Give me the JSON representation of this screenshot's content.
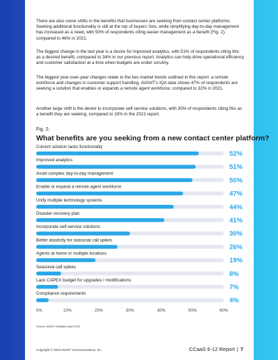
{
  "paragraphs": [
    "There are also some shifts in the benefits that businesses are seeking from contact center platforms. Seeking additional functionality is still at the top of buyers’ lists, while simplifying day-to-day management has increased as a need, with 50% of respondents citing easier management as a benefit (Fig. 2), compared to 46% in 2021.",
    "The biggest change in the last year is a desire for improved analytics, with 51% of respondents citing this as a desired benefit, compared to 34% in our previous report. Analytics can help drive operational efficiency and customer satisfaction at a time when budgets are under scrutiny.",
    "The biggest year-over-year changes relate to the two market trends outlined in this report: a remote workforce and changes in customer support handling. AVANT’s IQA data shows 47% of respondents are seeking a solution that enables or expands a remote agent workforce, compared to 32% in 2021.",
    "Another large shift is the desire to incorporate self-service solutions, with 30% of respondents citing this as a benefit they are seeking, compared to 19% in the 2021 report."
  ],
  "figure": {
    "label": "Fig. 2:",
    "source": "Source: AVANT Analytics April 2023"
  },
  "chart_data": {
    "type": "bar",
    "orientation": "horizontal",
    "title": "What benefits are you seeking from a new contact center platform?",
    "categories": [
      "Current solution lacks functionality",
      "Improved analytics",
      "Avoid complex day-to-day management",
      "Enable or expand a remote agent workforce",
      "Unify multiple technology systems",
      "Disaster recovery plan",
      "Incorporate self-service solutions",
      "Better elasticity for seasonal call spikes",
      "Agents at home or multiple locations",
      "Seasonal call spikes",
      "Lack CAPEX budget for upgrades / modifications",
      "Compliance requirements"
    ],
    "values": [
      52,
      51,
      50,
      47,
      44,
      41,
      30,
      26,
      19,
      8,
      7,
      4
    ],
    "value_labels": [
      "52%",
      "51%",
      "50%",
      "47%",
      "44%",
      "41%",
      "30%",
      "26%",
      "19%",
      "8%",
      "7%",
      "4%"
    ],
    "xticks": [
      "0%",
      "10%",
      "20%",
      "30%",
      "40%",
      "50%",
      "60%"
    ],
    "xlim": [
      0,
      60
    ],
    "xlabel": "",
    "ylabel": "",
    "bar_color": "#2aa7e8",
    "track_color": "#e4e8ee",
    "label_color": "#2aa7e8",
    "grid": false
  },
  "footer": {
    "copyright": "Copyright © 2023 AVANT Communications, Inc.",
    "report_name": "CCaaS 6-12 Report",
    "separator": "|",
    "page_number": "7"
  }
}
